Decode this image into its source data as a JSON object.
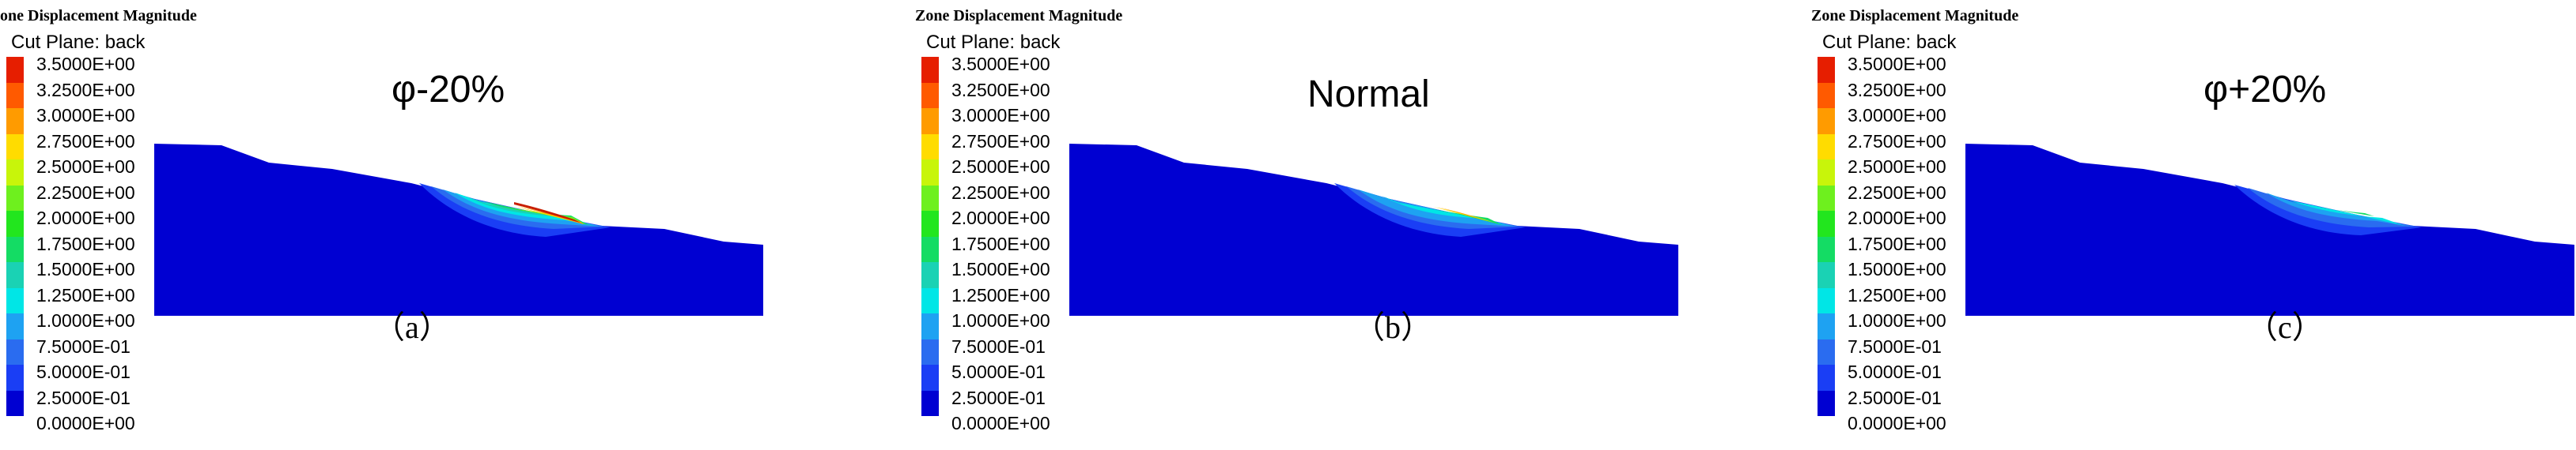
{
  "colors": {
    "model_body": "#0000d2",
    "legend": [
      "#0000d2",
      "#1a3ef5",
      "#2a6cf0",
      "#1ea2f2",
      "#00e6e6",
      "#1ad2b4",
      "#14dc64",
      "#22e61e",
      "#6ef01e",
      "#c8f50a",
      "#ffdc00",
      "#ff9b00",
      "#ff5a00",
      "#e61e00"
    ]
  },
  "legend_labels": [
    "3.5000E+00",
    "3.2500E+00",
    "3.0000E+00",
    "2.7500E+00",
    "2.5000E+00",
    "2.2500E+00",
    "2.0000E+00",
    "1.7500E+00",
    "1.5000E+00",
    "1.2500E+00",
    "1.0000E+00",
    "7.5000E-01",
    "5.0000E-01",
    "2.5000E-01",
    "0.0000E+00"
  ],
  "panels": [
    {
      "header": "one Displacement Magnitude",
      "cut_plane": "Cut Plane: back",
      "title": "φ-20%",
      "sublabel": "（a）"
    },
    {
      "header": "Zone Displacement Magnitude",
      "cut_plane": "Cut Plane: back",
      "title": "Normal",
      "sublabel": "（b）"
    },
    {
      "header": "Zone Displacement Magnitude",
      "cut_plane": "Cut Plane: back",
      "title": "φ+20%",
      "sublabel": "（c）"
    }
  ]
}
